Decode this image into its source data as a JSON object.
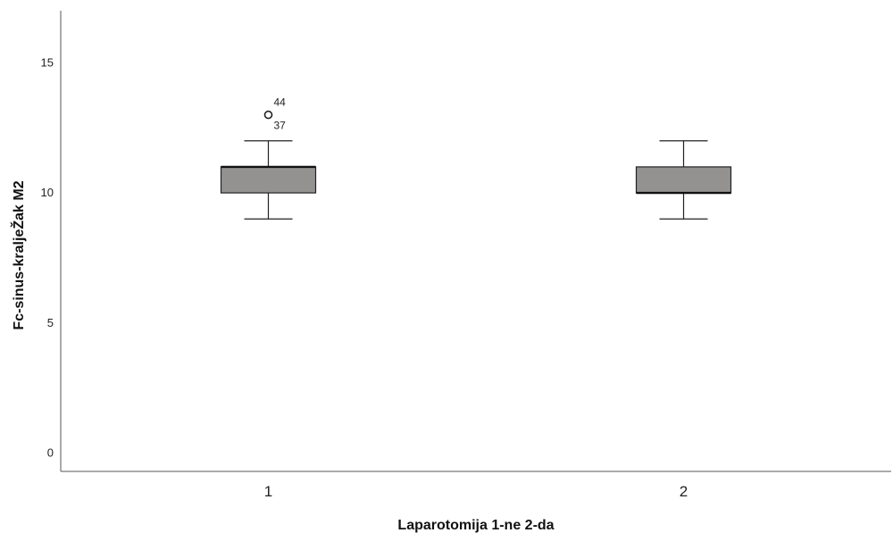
{
  "chart_data": {
    "type": "boxplot",
    "xlabel": "Laparotomija 1-ne 2-da",
    "ylabel": "Fc-sinus-kraljeŽak M2",
    "ylim": [
      -0.7,
      17
    ],
    "yticks": [
      0,
      5,
      10,
      15
    ],
    "categories": [
      "1",
      "2"
    ],
    "boxes": [
      {
        "category": "1",
        "whisker_low": 9,
        "q1": 10,
        "median": 11,
        "q3": 11,
        "whisker_high": 12,
        "outliers": [
          {
            "value": 13,
            "labels": [
              "44",
              "37"
            ]
          }
        ]
      },
      {
        "category": "2",
        "whisker_low": 9,
        "q1": 10,
        "median": 10,
        "q3": 11,
        "whisker_high": 12,
        "outliers": []
      }
    ],
    "grid": false,
    "colors": {
      "box_fill": "#949291",
      "box_stroke": "#222222",
      "axis": "#555555"
    }
  }
}
